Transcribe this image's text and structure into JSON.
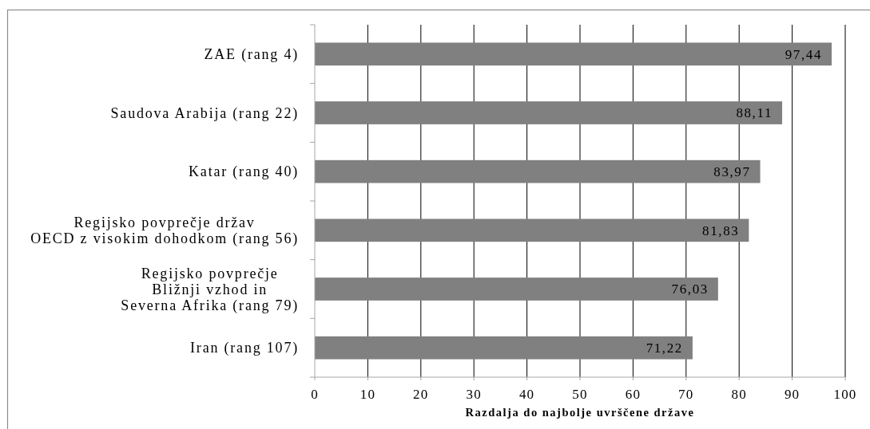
{
  "chart_data": {
    "type": "bar",
    "orientation": "horizontal",
    "xlabel": "Razdalja do najbolje uvrščene države",
    "categories": [
      "ZAE (rang 4)",
      "Saudova Arabija (rang 22)",
      "Katar (rang 40)",
      "Regijsko povprečje držav\nOECD z visokim dohodkom (rang 56)",
      "Regijsko povprečje\nBližnji vzhod in\nSeverna Afrika (rang 79)",
      "Iran (rang 107)"
    ],
    "values": [
      97.44,
      88.11,
      83.97,
      81.83,
      76.03,
      71.22
    ],
    "value_labels": [
      "97,44",
      "88,11",
      "83,97",
      "81,83",
      "76,03",
      "71,22"
    ],
    "color": "#808080",
    "xlim": [
      0,
      100
    ],
    "xticks": [
      0,
      10,
      20,
      30,
      40,
      50,
      60,
      70,
      80,
      90,
      100
    ],
    "grid": "x"
  }
}
